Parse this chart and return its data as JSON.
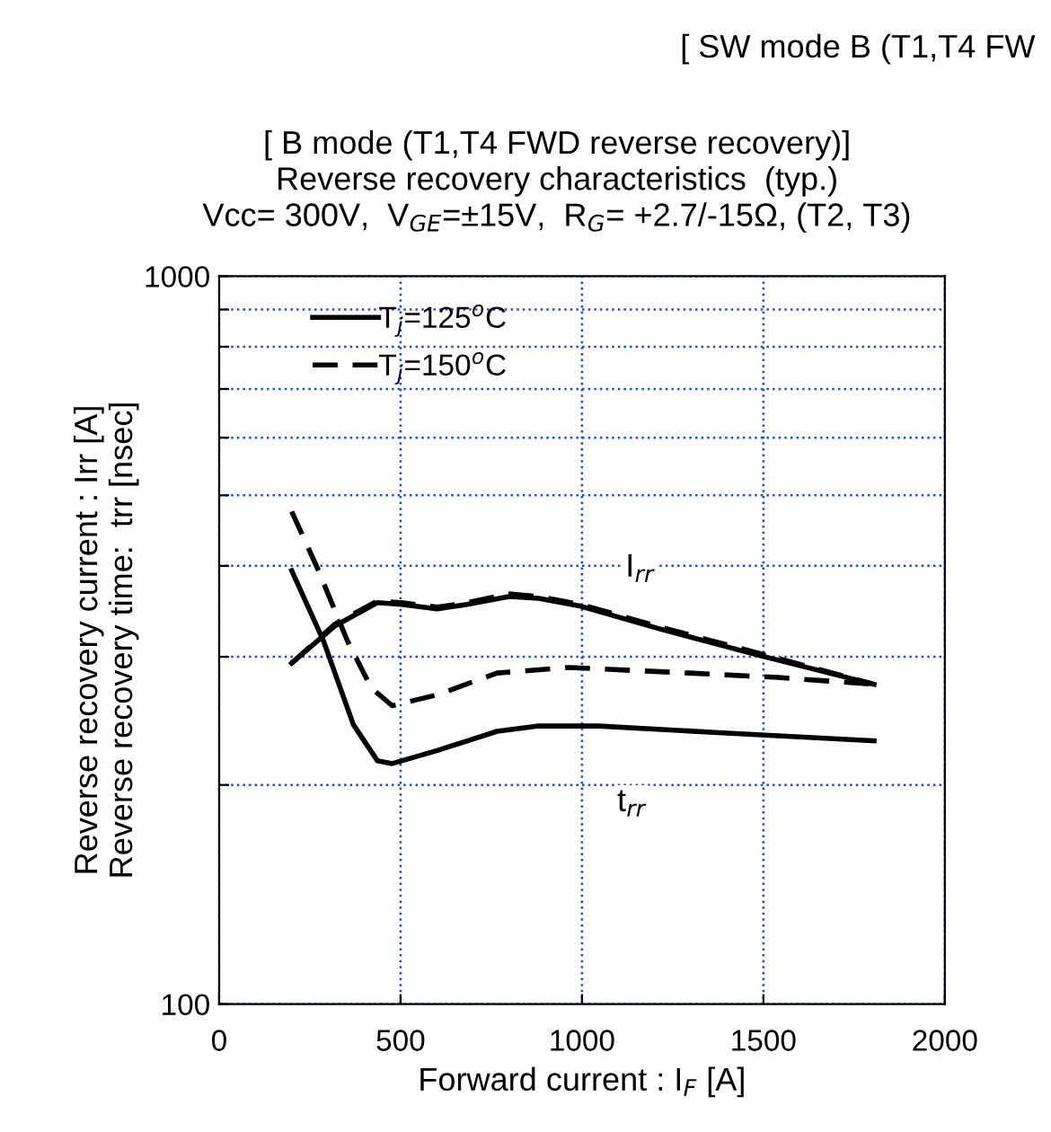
{
  "chart_data": {
    "type": "line",
    "title": "[ SW mode B (T1,T4 FW",
    "subtitle": "[ B mode (T1,T4 FWD reverse recovery)]\nReverse recovery characteristics  (typ.)\nVcc= 300V,  V$_{GE}$=±15V,  R$_{G}$= +2.7/-15Ω, (T2, T3)",
    "xlabel": "Forward current : I$_{F}$ [A]",
    "ylabel": "Reverse recovery current : Irr [A]\nReverse recovery time:  trr [nsec]",
    "log": "y",
    "grid": true,
    "legend": "top left",
    "marker": "none",
    "xlim": [
      0,
      2000
    ],
    "xticks": [
      0,
      500,
      1000,
      1500,
      2000
    ],
    "ylim": [
      100,
      1000
    ],
    "yticks": [
      100,
      {
        "value": 200,
        "label": null
      },
      {
        "value": 300,
        "label": null
      },
      {
        "value": 400,
        "label": null
      },
      {
        "value": 500,
        "label": null
      },
      {
        "value": 600,
        "label": null
      },
      {
        "value": 700,
        "label": null
      },
      {
        "value": 800,
        "label": null
      },
      {
        "value": 900,
        "label": null
      },
      1000
    ],
    "series": [
      {
        "name": "T$_{j}$=125$^{o}$C",
        "color": "#000000",
        "line_style": "solid",
        "x": [
          200,
          320,
          436,
          502,
          601,
          683,
          799,
          881,
          997,
          1211,
          1492,
          1805
        ],
        "values": [
          294,
          331,
          356,
          354,
          349,
          354,
          363,
          361,
          352,
          328,
          301,
          275
        ]
      },
      {
        "name": "T$_{j}$=150$^{o}$C",
        "color": "#000000",
        "line_style": "dashed",
        "x": [
          200,
          320,
          436,
          502,
          601,
          683,
          799,
          881,
          997,
          1211,
          1492,
          1805
        ],
        "values": [
          294,
          333,
          358,
          356,
          351,
          356,
          366,
          363,
          354,
          330,
          303,
          275
        ]
      },
      {
        "color": "#000000",
        "line_style": "solid",
        "x": [
          200,
          287,
          370,
          436,
          477,
          601,
          766,
          881,
          1046,
          1376,
          1805
        ],
        "values": [
          394,
          316,
          242,
          216,
          214,
          223,
          237,
          241,
          241,
          236,
          230
        ]
      },
      {
        "color": "#000000",
        "line_style": "dashed",
        "x": [
          200,
          271,
          353,
          419,
          477,
          601,
          766,
          964,
          1294,
          1541,
          1805
        ],
        "values": [
          475,
          397,
          316,
          272,
          257,
          266,
          285,
          290,
          285,
          281,
          275
        ]
      }
    ],
    "annotations": [
      {
        "text": "I$_{rr}$",
        "x": 1160,
        "y": 397
      },
      {
        "text": "t$_{rr}$",
        "x": 1137,
        "y": 189
      }
    ]
  }
}
